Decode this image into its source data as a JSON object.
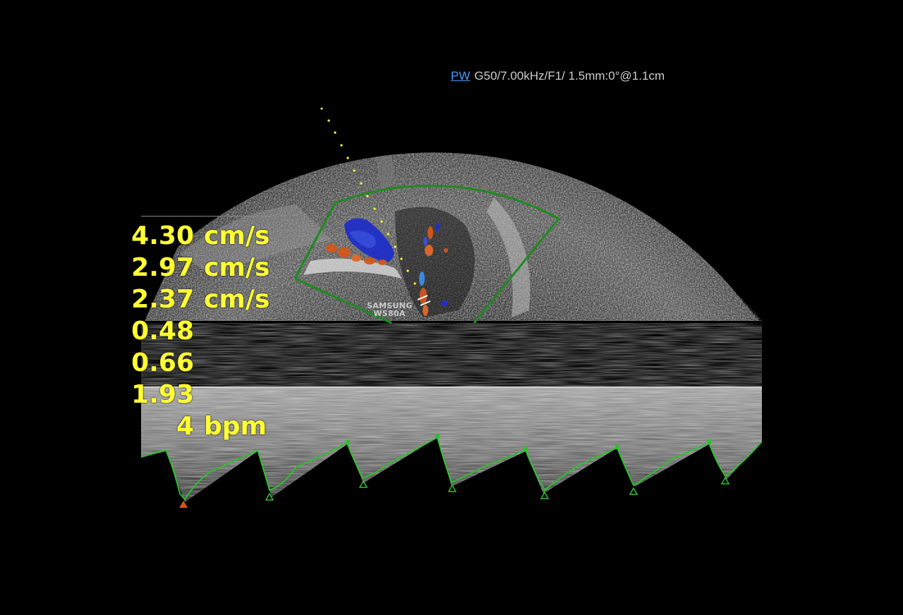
{
  "header": {
    "mode": "PW",
    "params": "G50/7.00kHz/F1/ 1.5mm:0°@1.1cm"
  },
  "logo": {
    "line1": "SAMSUNG",
    "line2": "WS80A"
  },
  "measurements": [
    {
      "value": "4.30",
      "unit": "cm/s"
    },
    {
      "value": "2.97",
      "unit": "cm/s"
    },
    {
      "value": "2.37",
      "unit": "cm/s"
    },
    {
      "value": "0.48",
      "unit": ""
    },
    {
      "value": "0.66",
      "unit": ""
    },
    {
      "value": "1.93",
      "unit": ""
    },
    {
      "value": "4",
      "unit": "bpm"
    }
  ],
  "colors": {
    "annotation": "#ffff33",
    "trace": "#2fbf2f",
    "color_box": "#1e8a1e",
    "flow_toward": "#d4571c",
    "flow_away": "#1f2fc8",
    "mode_link": "#4a9cff"
  }
}
